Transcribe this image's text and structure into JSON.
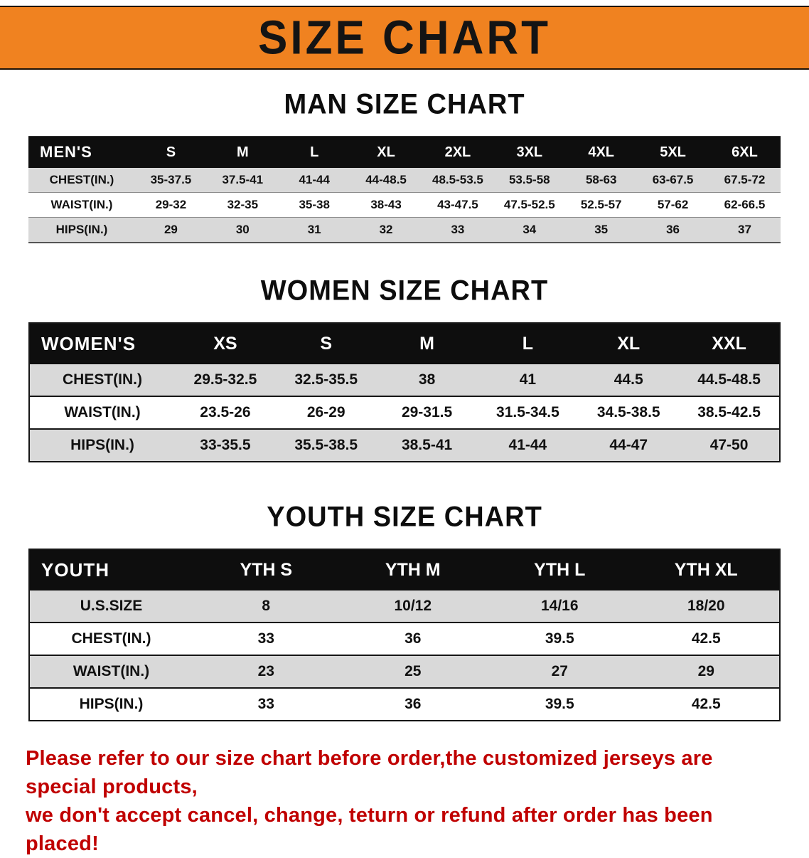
{
  "banner": {
    "title": "SIZE CHART"
  },
  "colors": {
    "banner_bg": "#f08220",
    "header_bg": "#0e0e0e",
    "alt_row": "#d9d9d9",
    "note_red": "#c00000"
  },
  "men": {
    "heading": "MAN SIZE CHART",
    "corner": "MEN'S",
    "sizes": [
      "S",
      "M",
      "L",
      "XL",
      "2XL",
      "3XL",
      "4XL",
      "5XL",
      "6XL"
    ],
    "rows": [
      {
        "label": "CHEST(IN.)",
        "values": [
          "35-37.5",
          "37.5-41",
          "41-44",
          "44-48.5",
          "48.5-53.5",
          "53.5-58",
          "58-63",
          "63-67.5",
          "67.5-72"
        ]
      },
      {
        "label": "WAIST(IN.)",
        "values": [
          "29-32",
          "32-35",
          "35-38",
          "38-43",
          "43-47.5",
          "47.5-52.5",
          "52.5-57",
          "57-62",
          "62-66.5"
        ]
      },
      {
        "label": "HIPS(IN.)",
        "values": [
          "29",
          "30",
          "31",
          "32",
          "33",
          "34",
          "35",
          "36",
          "37"
        ]
      }
    ]
  },
  "women": {
    "heading": "WOMEN SIZE CHART",
    "corner": "WOMEN'S",
    "sizes": [
      "XS",
      "S",
      "M",
      "L",
      "XL",
      "XXL"
    ],
    "rows": [
      {
        "label": "CHEST(IN.)",
        "values": [
          "29.5-32.5",
          "32.5-35.5",
          "38",
          "41",
          "44.5",
          "44.5-48.5"
        ]
      },
      {
        "label": "WAIST(IN.)",
        "values": [
          "23.5-26",
          "26-29",
          "29-31.5",
          "31.5-34.5",
          "34.5-38.5",
          "38.5-42.5"
        ]
      },
      {
        "label": "HIPS(IN.)",
        "values": [
          "33-35.5",
          "35.5-38.5",
          "38.5-41",
          "41-44",
          "44-47",
          "47-50"
        ]
      }
    ]
  },
  "youth": {
    "heading": "YOUTH SIZE CHART",
    "corner": "YOUTH",
    "sizes": [
      "YTH S",
      "YTH M",
      "YTH L",
      "YTH XL"
    ],
    "rows": [
      {
        "label": "U.S.SIZE",
        "values": [
          "8",
          "10/12",
          "14/16",
          "18/20"
        ]
      },
      {
        "label": "CHEST(IN.)",
        "values": [
          "33",
          "36",
          "39.5",
          "42.5"
        ]
      },
      {
        "label": "WAIST(IN.)",
        "values": [
          "23",
          "25",
          "27",
          "29"
        ]
      },
      {
        "label": "HIPS(IN.)",
        "values": [
          "33",
          "36",
          "39.5",
          "42.5"
        ]
      }
    ]
  },
  "note": {
    "line1": "Please refer to our size chart before order,the customized jerseys are special products,",
    "line2": "we don't accept cancel, change, teturn or refund after order has been placed!"
  }
}
